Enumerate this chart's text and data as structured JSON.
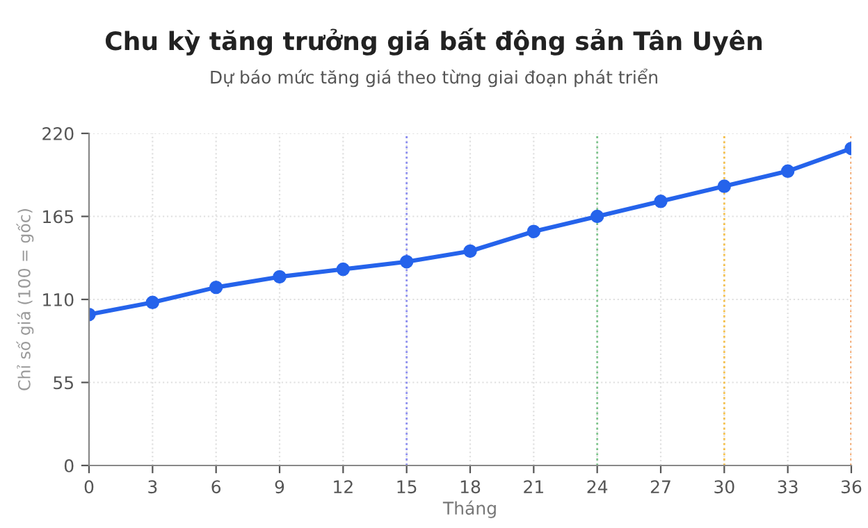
{
  "chart_data": {
    "type": "line",
    "title": "Chu kỳ tăng trưởng giá bất động sản Tân Uyên",
    "subtitle": "Dự báo mức tăng giá theo từng giai đoạn phát triển",
    "xlabel": "Tháng",
    "ylabel": "Chỉ số giá (100 = gốc)",
    "x": [
      0,
      3,
      6,
      9,
      12,
      15,
      18,
      21,
      24,
      27,
      30,
      33,
      36
    ],
    "series": [
      {
        "color": "#2563eb",
        "values": [
          100,
          108,
          118,
          125,
          130,
          135,
          142,
          155,
          165,
          175,
          185,
          195,
          210
        ]
      }
    ],
    "xlim": [
      0,
      36
    ],
    "xticks": [
      0,
      3,
      6,
      9,
      12,
      15,
      18,
      21,
      24,
      27,
      30,
      33,
      36
    ],
    "ylim": [
      0,
      220
    ],
    "yticks": [
      0,
      55,
      110,
      165,
      220
    ],
    "ref_lines": [
      {
        "axis": "x",
        "value": 15,
        "color": "#8b8cf0",
        "line_style": "dotted"
      },
      {
        "axis": "x",
        "value": 24,
        "color": "#7cc48a",
        "line_style": "dotted"
      },
      {
        "axis": "x",
        "value": 30,
        "color": "#f5c04a",
        "line_style": "dotted"
      },
      {
        "axis": "x",
        "value": 36,
        "color": "#f08a3c",
        "line_style": "dotted"
      }
    ],
    "grid": true,
    "marker": "circle",
    "line_style": "solid",
    "legend": false
  }
}
